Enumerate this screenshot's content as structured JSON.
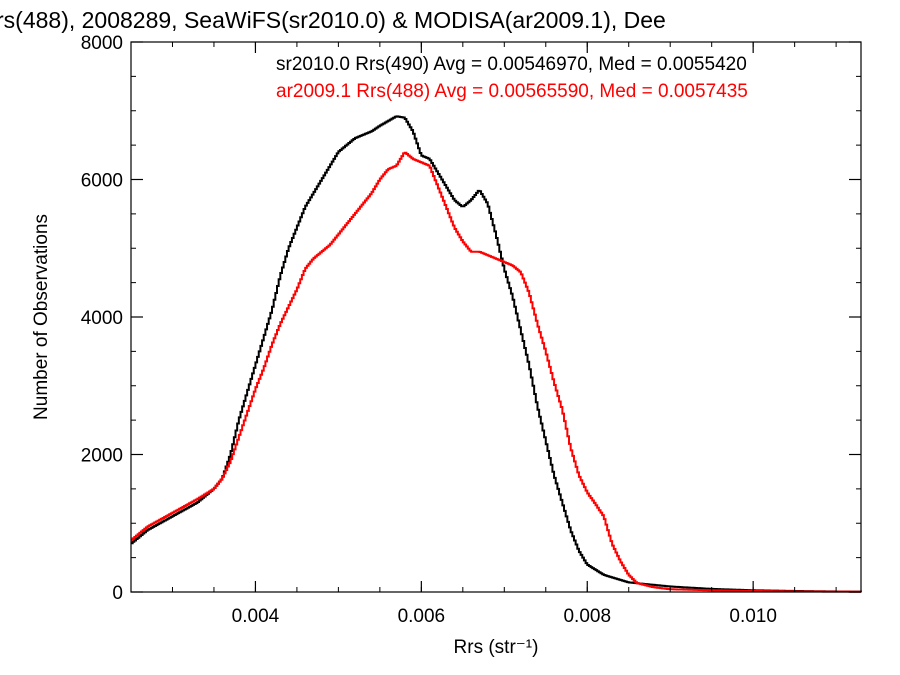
{
  "chart_data": {
    "type": "line",
    "title": "rs(488), 2008289, SeaWiFS(sr2010.0) & MODISA(ar2009.1), Dee",
    "xlabel": "Rrs (str⁻¹)",
    "ylabel": "Number of Observations",
    "xlim": [
      0.0025,
      0.0113
    ],
    "ylim": [
      0,
      8000
    ],
    "x_ticks": [
      0.004,
      0.006,
      0.008,
      0.01
    ],
    "x_tick_labels": [
      "0.004",
      "0.006",
      "0.008",
      "0.010"
    ],
    "y_ticks": [
      0,
      2000,
      4000,
      6000,
      8000
    ],
    "y_tick_labels": [
      "0",
      "2000",
      "4000",
      "6000",
      "8000"
    ],
    "legend_position": "top-right",
    "series": [
      {
        "name": "sr2010.0 Rrs(490) Avg = 0.00546970, Med = 0.0055420",
        "color": "#000000",
        "points": [
          [
            0.0025,
            700
          ],
          [
            0.0027,
            900
          ],
          [
            0.003,
            1100
          ],
          [
            0.0033,
            1300
          ],
          [
            0.0035,
            1500
          ],
          [
            0.0036,
            1650
          ],
          [
            0.0037,
            2000
          ],
          [
            0.0038,
            2500
          ],
          [
            0.0039,
            2900
          ],
          [
            0.004,
            3300
          ],
          [
            0.0041,
            3700
          ],
          [
            0.0042,
            4100
          ],
          [
            0.0043,
            4600
          ],
          [
            0.0044,
            5000
          ],
          [
            0.0045,
            5300
          ],
          [
            0.0046,
            5600
          ],
          [
            0.0047,
            5800
          ],
          [
            0.0048,
            6000
          ],
          [
            0.0049,
            6200
          ],
          [
            0.005,
            6400
          ],
          [
            0.0051,
            6500
          ],
          [
            0.0052,
            6600
          ],
          [
            0.0053,
            6650
          ],
          [
            0.0054,
            6700
          ],
          [
            0.0055,
            6780
          ],
          [
            0.0056,
            6850
          ],
          [
            0.0057,
            6920
          ],
          [
            0.0058,
            6900
          ],
          [
            0.0059,
            6700
          ],
          [
            0.006,
            6350
          ],
          [
            0.0061,
            6300
          ],
          [
            0.0062,
            6100
          ],
          [
            0.0063,
            5900
          ],
          [
            0.0064,
            5700
          ],
          [
            0.0065,
            5600
          ],
          [
            0.0066,
            5700
          ],
          [
            0.0067,
            5850
          ],
          [
            0.0068,
            5650
          ],
          [
            0.0069,
            5200
          ],
          [
            0.007,
            4700
          ],
          [
            0.0071,
            4300
          ],
          [
            0.0072,
            3800
          ],
          [
            0.0073,
            3300
          ],
          [
            0.0074,
            2700
          ],
          [
            0.0075,
            2200
          ],
          [
            0.0076,
            1700
          ],
          [
            0.0077,
            1300
          ],
          [
            0.0078,
            900
          ],
          [
            0.0079,
            600
          ],
          [
            0.008,
            400
          ],
          [
            0.0082,
            250
          ],
          [
            0.0085,
            140
          ],
          [
            0.009,
            80
          ],
          [
            0.0095,
            45
          ],
          [
            0.01,
            25
          ],
          [
            0.0105,
            15
          ],
          [
            0.011,
            8
          ],
          [
            0.0113,
            5
          ]
        ]
      },
      {
        "name": "ar2009.1 Rrs(488) Avg = 0.00565590, Med = 0.0057435",
        "color": "#ff0000",
        "points": [
          [
            0.0025,
            750
          ],
          [
            0.0027,
            950
          ],
          [
            0.003,
            1150
          ],
          [
            0.0033,
            1350
          ],
          [
            0.0035,
            1500
          ],
          [
            0.0036,
            1650
          ],
          [
            0.0037,
            1900
          ],
          [
            0.0038,
            2250
          ],
          [
            0.0039,
            2600
          ],
          [
            0.004,
            2950
          ],
          [
            0.0041,
            3250
          ],
          [
            0.0042,
            3600
          ],
          [
            0.0043,
            3900
          ],
          [
            0.0044,
            4150
          ],
          [
            0.0045,
            4400
          ],
          [
            0.0046,
            4700
          ],
          [
            0.0047,
            4850
          ],
          [
            0.0048,
            4950
          ],
          [
            0.0049,
            5050
          ],
          [
            0.005,
            5200
          ],
          [
            0.0051,
            5350
          ],
          [
            0.0052,
            5500
          ],
          [
            0.0053,
            5650
          ],
          [
            0.0054,
            5800
          ],
          [
            0.0055,
            6000
          ],
          [
            0.0056,
            6150
          ],
          [
            0.0057,
            6200
          ],
          [
            0.0058,
            6400
          ],
          [
            0.0059,
            6300
          ],
          [
            0.006,
            6250
          ],
          [
            0.0061,
            6200
          ],
          [
            0.0062,
            5900
          ],
          [
            0.0063,
            5600
          ],
          [
            0.0064,
            5300
          ],
          [
            0.0065,
            5100
          ],
          [
            0.0066,
            4950
          ],
          [
            0.0067,
            4950
          ],
          [
            0.0068,
            4900
          ],
          [
            0.0069,
            4850
          ],
          [
            0.007,
            4800
          ],
          [
            0.0071,
            4750
          ],
          [
            0.0072,
            4650
          ],
          [
            0.0073,
            4350
          ],
          [
            0.0074,
            3900
          ],
          [
            0.0075,
            3500
          ],
          [
            0.0076,
            3050
          ],
          [
            0.0077,
            2650
          ],
          [
            0.0078,
            2100
          ],
          [
            0.0079,
            1700
          ],
          [
            0.008,
            1450
          ],
          [
            0.0081,
            1280
          ],
          [
            0.0082,
            1100
          ],
          [
            0.0083,
            700
          ],
          [
            0.0084,
            450
          ],
          [
            0.0085,
            250
          ],
          [
            0.0086,
            130
          ],
          [
            0.0088,
            70
          ],
          [
            0.009,
            40
          ],
          [
            0.0095,
            25
          ],
          [
            0.01,
            15
          ],
          [
            0.0105,
            8
          ],
          [
            0.0113,
            4
          ]
        ]
      }
    ]
  }
}
